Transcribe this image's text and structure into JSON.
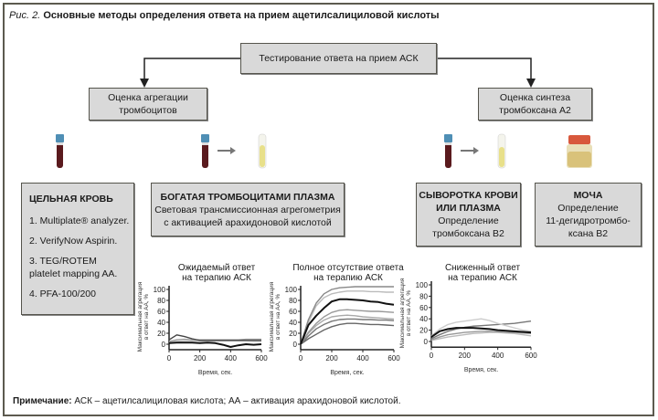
{
  "figure": {
    "label": "Рис. 2.",
    "title": "Основные методы определения ответа на прием ацетилсалициловой кислоты"
  },
  "top_box": "Тестирование ответа на прием АСК",
  "branches": {
    "left": {
      "line1": "Оценка агрегации",
      "line2": "тромбоцитов"
    },
    "right": {
      "line1": "Оценка синтеза",
      "line2": "тромбоксана А2"
    }
  },
  "icons": [
    "blood-tube-icon",
    "blood-tube-icon",
    "arrow-right-icon",
    "plasma-tube-icon",
    "blood-tube-icon",
    "arrow-right-icon",
    "plasma-tube-icon",
    "urine-jar-icon"
  ],
  "colors": {
    "box_fill": "#d9d9d9",
    "border": "#55544c",
    "blood": "#5a1a1e",
    "tube_cap": "#4f8fb5",
    "plasma": "#e8e08a",
    "urine": "#d9c27a",
    "urine_cap": "#d8583c"
  },
  "methods": {
    "whole_blood": {
      "heading": "ЦЕЛЬНАЯ КРОВЬ",
      "items": [
        "1. Multiplate® analyzer.",
        "2. VerifyNow Aspirin.",
        "3. TEG/ROTEM platelet mapping AA.",
        "4. PFA-100/200"
      ]
    },
    "prp": {
      "heading": "БОГАТАЯ ТРОМБОЦИТАМИ ПЛАЗМА",
      "line1": "Световая трансмиссионная агрегометрия",
      "line2": "с активацией арахидоновой кислотой"
    },
    "serum": {
      "heading1": "СЫВОРОТКА КРОВИ",
      "heading2": "ИЛИ ПЛАЗМА",
      "line1": "Определение",
      "line2": "тромбоксана В2"
    },
    "urine": {
      "heading": "МОЧА",
      "line1": "Определение",
      "line2": "11-дегидротромбо-",
      "line3": "ксана В2"
    }
  },
  "chart_data": [
    {
      "type": "line",
      "title": [
        "Ожидаемый ответ",
        "на терапию АСК"
      ],
      "xlabel": "Время, сек.",
      "ylabel": [
        "Максимальная агрегация",
        "в ответ на АА, %"
      ],
      "xlim": [
        0,
        600
      ],
      "ylim": [
        -10,
        100
      ],
      "xticks": [
        0,
        200,
        400,
        600
      ],
      "yticks": [
        0,
        20,
        40,
        60,
        80,
        100
      ],
      "x": [
        0,
        50,
        100,
        150,
        200,
        250,
        300,
        350,
        400,
        450,
        500,
        550,
        600
      ],
      "series": [
        {
          "color": "#111111",
          "values": [
            2,
            3,
            3,
            3,
            2,
            3,
            2,
            -1,
            -5,
            -2,
            0,
            -1,
            0
          ]
        },
        {
          "color": "#444444",
          "values": [
            8,
            17,
            14,
            10,
            7,
            7,
            7,
            7,
            7,
            7,
            7,
            7,
            7
          ]
        },
        {
          "color": "#999999",
          "values": [
            5,
            8,
            9,
            8,
            8,
            8,
            8,
            8,
            8,
            8,
            9,
            9,
            9
          ]
        },
        {
          "color": "#cccccc",
          "values": [
            3,
            5,
            6,
            6,
            6,
            6,
            6,
            6,
            6,
            6,
            6,
            5,
            5
          ]
        }
      ]
    },
    {
      "type": "line",
      "title": [
        "Полное отсутствие ответа",
        "на терапию АСК"
      ],
      "xlabel": "Время, сек.",
      "ylabel": [
        "Максимальная агрегация",
        "в ответ на АА, %"
      ],
      "xlim": [
        0,
        600
      ],
      "ylim": [
        -10,
        100
      ],
      "xticks": [
        0,
        200,
        400,
        600
      ],
      "yticks": [
        0,
        20,
        40,
        60,
        80,
        100
      ],
      "x": [
        0,
        50,
        100,
        150,
        200,
        250,
        300,
        350,
        400,
        450,
        500,
        550,
        600
      ],
      "series": [
        {
          "color": "#111111",
          "values": [
            0,
            35,
            52,
            66,
            78,
            82,
            82,
            81,
            80,
            78,
            77,
            74,
            72
          ]
        },
        {
          "color": "#888888",
          "values": [
            0,
            45,
            75,
            92,
            100,
            103,
            104,
            105,
            105,
            105,
            105,
            105,
            105
          ]
        },
        {
          "color": "#bbbbbb",
          "values": [
            0,
            40,
            70,
            85,
            92,
            95,
            97,
            97,
            97,
            96,
            96,
            95,
            95
          ]
        },
        {
          "color": "#999999",
          "values": [
            0,
            22,
            38,
            50,
            58,
            62,
            63,
            62,
            61,
            60,
            60,
            59,
            58
          ]
        },
        {
          "color": "#777777",
          "values": [
            0,
            15,
            28,
            36,
            42,
            45,
            46,
            46,
            45,
            45,
            44,
            44,
            43
          ]
        },
        {
          "color": "#666666",
          "values": [
            0,
            10,
            18,
            26,
            32,
            36,
            38,
            38,
            37,
            36,
            36,
            35,
            34
          ]
        },
        {
          "color": "#aaaaaa",
          "values": [
            0,
            20,
            34,
            44,
            50,
            52,
            53,
            52,
            50,
            49,
            48,
            47,
            46
          ]
        }
      ]
    },
    {
      "type": "line",
      "title": [
        "Сниженный ответ",
        "на терапию АСК"
      ],
      "xlabel": "Время, сек.",
      "ylabel": [
        "Максимальная агрегация",
        "в ответ на АА, %"
      ],
      "xlim": [
        0,
        600
      ],
      "ylim": [
        -10,
        100
      ],
      "xticks": [
        0,
        200,
        400,
        600
      ],
      "yticks": [
        0,
        20,
        40,
        60,
        80,
        100
      ],
      "x": [
        0,
        50,
        100,
        150,
        200,
        250,
        300,
        350,
        400,
        450,
        500,
        550,
        600
      ],
      "series": [
        {
          "color": "#111111",
          "values": [
            8,
            18,
            22,
            24,
            24,
            24,
            23,
            22,
            20,
            19,
            18,
            17,
            16
          ]
        },
        {
          "color": "#cccccc",
          "values": [
            10,
            22,
            30,
            34,
            36,
            38,
            40,
            37,
            32,
            28,
            24,
            20,
            18
          ]
        },
        {
          "color": "#777777",
          "values": [
            5,
            12,
            18,
            22,
            25,
            27,
            28,
            29,
            30,
            31,
            32,
            34,
            36
          ]
        },
        {
          "color": "#999999",
          "values": [
            3,
            8,
            12,
            14,
            16,
            17,
            18,
            18,
            17,
            16,
            16,
            15,
            14
          ]
        },
        {
          "color": "#bbbbbb",
          "values": [
            2,
            5,
            8,
            10,
            12,
            14,
            15,
            16,
            16,
            15,
            14,
            12,
            10
          ]
        }
      ]
    }
  ],
  "note": {
    "label": "Примечание:",
    "text": "АСК – ацетилсалициловая кислота; АА – активация арахидоновой кислотой."
  }
}
